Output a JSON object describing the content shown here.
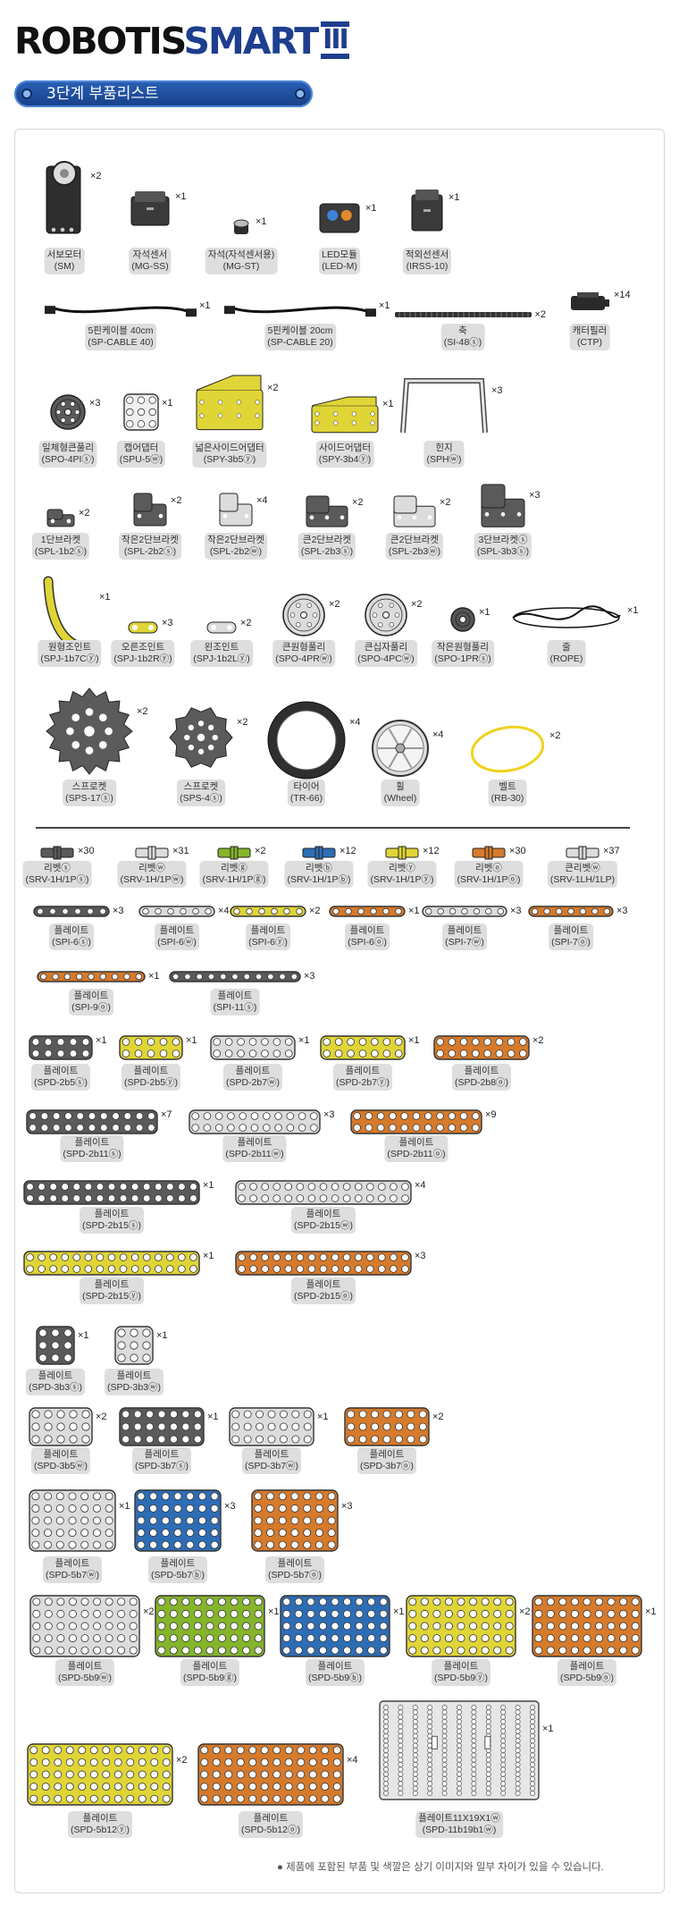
{
  "brand": {
    "part1": "ROBOTIS",
    "part2": "SMART",
    "part3": "III"
  },
  "banner": {
    "title": "3단계 부품리스트"
  },
  "note": "● 제품에 포함된 부품 및 색깔은 상기 이미지와 일부 차이가 있을 수 있습니다.",
  "colors": {
    "accent": "#1e3e8e",
    "banner": "#2a61b8",
    "dark_gray": "#595959",
    "light_gray": "#d2d2d2",
    "yellow": "#e2d636",
    "orange": "#d97b2a",
    "blue": "#2e6cb5",
    "green": "#86b82c"
  },
  "parts": [
    {
      "id": "sm",
      "name": "서보모터",
      "code": "(SM)",
      "qty": "×2",
      "icon": "servo-motor-icon"
    },
    {
      "id": "mgss",
      "name": "자석센서",
      "code": "(MG-SS)",
      "qty": "×1",
      "icon": "magnet-sensor-icon"
    },
    {
      "id": "mgst",
      "name": "자석(자석센서용)",
      "code": "(MG-ST)",
      "qty": "×1",
      "icon": "magnet-icon"
    },
    {
      "id": "ledm",
      "name": "LED모듈",
      "code": "(LED-M)",
      "qty": "×1",
      "icon": "led-module-icon"
    },
    {
      "id": "irss",
      "name": "적외선센서",
      "code": "(IRSS-10)",
      "qty": "×1",
      "icon": "infrared-sensor-icon"
    },
    {
      "id": "cable40",
      "name": "5핀케이블 40cm",
      "code": "(SP-CABLE 40)",
      "qty": "×1",
      "icon": "cable-icon"
    },
    {
      "id": "cable20",
      "name": "5핀케이블 20cm",
      "code": "(SP-CABLE 20)",
      "qty": "×1",
      "icon": "cable-icon"
    },
    {
      "id": "shaft",
      "name": "축",
      "code": "(SI-48ⓢ)",
      "qty": "×2",
      "icon": "shaft-icon"
    },
    {
      "id": "ctp",
      "name": "캐터필러",
      "code": "(CTP)",
      "qty": "×14",
      "icon": "caterpillar-icon"
    },
    {
      "id": "spo4pl",
      "name": "일체형큰풀리",
      "code": "(SPO-4PIⓢ)",
      "qty": "×3",
      "icon": "pulley-icon"
    },
    {
      "id": "spu5",
      "name": "캡어댑터",
      "code": "(SPU-5ⓦ)",
      "qty": "×1",
      "icon": "cap-adapter-icon"
    },
    {
      "id": "spy3b5",
      "name": "넓은사이드어댑터",
      "code": "(SPY-3b5ⓨ)",
      "qty": "×2",
      "icon": "wide-side-adapter-icon"
    },
    {
      "id": "spy3b4",
      "name": "사이드어댑터",
      "code": "(SPY-3b4ⓨ)",
      "qty": "×1",
      "icon": "side-adapter-icon"
    },
    {
      "id": "sph",
      "name": "힌지",
      "code": "(SPHⓦ)",
      "qty": "×3",
      "icon": "hinge-icon"
    },
    {
      "id": "spl1b2",
      "name": "1단브라켓",
      "code": "(SPL-1b2ⓢ)",
      "qty": "×2",
      "icon": "bracket-icon"
    },
    {
      "id": "spl2b2s",
      "name": "작은2단브라켓",
      "code": "(SPL-2b2ⓢ)",
      "qty": "×2",
      "icon": "bracket-icon"
    },
    {
      "id": "spl2b2w",
      "name": "작은2단브라켓",
      "code": "(SPL-2b2ⓦ)",
      "qty": "×4",
      "icon": "bracket-icon"
    },
    {
      "id": "spl2b3s",
      "name": "큰2단브라켓",
      "code": "(SPL-2b3ⓢ)",
      "qty": "×2",
      "icon": "bracket-icon"
    },
    {
      "id": "spl2b3w",
      "name": "큰2단브라켓",
      "code": "(SPL-2b3ⓦ)",
      "qty": "×2",
      "icon": "bracket-icon"
    },
    {
      "id": "spl3b3",
      "name": "3단브라켓ⓢ",
      "code": "(SPL-3b3ⓢ)",
      "qty": "×3",
      "icon": "bracket-icon"
    },
    {
      "id": "spj1b7",
      "name": "원형조인트",
      "code": "(SPJ-1b7Cⓨ)",
      "qty": "×1",
      "icon": "joint-icon"
    },
    {
      "id": "spj1b2r",
      "name": "오른조인트",
      "code": "(SPJ-1b2Rⓨ)",
      "qty": "×3",
      "icon": "joint-icon"
    },
    {
      "id": "spj1b2l",
      "name": "왼조인트",
      "code": "(SPJ-1b2Lⓨ)",
      "qty": "×2",
      "icon": "joint-icon"
    },
    {
      "id": "spo4pr",
      "name": "큰원형풀리",
      "code": "(SPO-4PRⓦ)",
      "qty": "×2",
      "icon": "pulley-icon"
    },
    {
      "id": "spo4pc",
      "name": "큰십자풀리",
      "code": "(SPO-4PCⓦ)",
      "qty": "×2",
      "icon": "pulley-icon"
    },
    {
      "id": "spo1pr",
      "name": "작은원형풀리",
      "code": "(SPO-1PRⓢ)",
      "qty": "×1",
      "icon": "pulley-icon"
    },
    {
      "id": "rope",
      "name": "줄",
      "code": "(ROPE)",
      "qty": "×1",
      "icon": "rope-icon"
    },
    {
      "id": "sps17",
      "name": "스프로켓",
      "code": "(SPS-17ⓢ)",
      "qty": "×2",
      "icon": "sprocket-icon"
    },
    {
      "id": "sps4",
      "name": "스프로켓",
      "code": "(SPS-4ⓢ)",
      "qty": "×2",
      "icon": "sprocket-icon"
    },
    {
      "id": "tr66",
      "name": "타이어",
      "code": "(TR-66)",
      "qty": "×4",
      "icon": "tire-icon"
    },
    {
      "id": "wheel",
      "name": "휠",
      "code": "(Wheel)",
      "qty": "×4",
      "icon": "wheel-icon"
    },
    {
      "id": "rb30",
      "name": "벨트",
      "code": "(RB-30)",
      "qty": "×2",
      "icon": "belt-icon"
    },
    {
      "id": "r1",
      "name": "리벳ⓢ",
      "code": "(SRV-1H/1Pⓢ)",
      "qty": "×30",
      "icon": "rivet-icon"
    },
    {
      "id": "r2",
      "name": "리벳ⓦ",
      "code": "(SRV-1H/1Pⓦ)",
      "qty": "×31",
      "icon": "rivet-icon"
    },
    {
      "id": "r3",
      "name": "리벳ⓖ",
      "code": "(SRV-1H/1Pⓖ)",
      "qty": "×2",
      "icon": "rivet-icon"
    },
    {
      "id": "r4",
      "name": "리벳ⓑ",
      "code": "(SRV-1H/1Pⓑ)",
      "qty": "×12",
      "icon": "rivet-icon"
    },
    {
      "id": "r5",
      "name": "리벳ⓨ",
      "code": "(SRV-1H/1Pⓨ)",
      "qty": "×12",
      "icon": "rivet-icon"
    },
    {
      "id": "r6",
      "name": "리벳ⓞ",
      "code": "(SRV-1H/1Pⓞ)",
      "qty": "×30",
      "icon": "rivet-icon"
    },
    {
      "id": "r7",
      "name": "큰리벳ⓦ",
      "code": "(SRV-1LH/1LP)",
      "qty": "×37",
      "icon": "rivet-icon"
    },
    {
      "id": "pi6s",
      "name": "플레이트",
      "code": "(SPI-6ⓢ)",
      "qty": "×3",
      "icon": "plate-icon"
    },
    {
      "id": "pi6w",
      "name": "플레이트",
      "code": "(SPI-6ⓦ)",
      "qty": "×4",
      "icon": "plate-icon"
    },
    {
      "id": "pi6y",
      "name": "플레이트",
      "code": "(SPI-6ⓨ)",
      "qty": "×2",
      "icon": "plate-icon"
    },
    {
      "id": "pi6o",
      "name": "플레이트",
      "code": "(SPI-6ⓞ)",
      "qty": "×1",
      "icon": "plate-icon"
    },
    {
      "id": "pi7w",
      "name": "플레이트",
      "code": "(SPI-7ⓦ)",
      "qty": "×3",
      "icon": "plate-icon"
    },
    {
      "id": "pi7o",
      "name": "플레이트",
      "code": "(SPI-7ⓞ)",
      "qty": "×3",
      "icon": "plate-icon"
    },
    {
      "id": "pi9o",
      "name": "플레이트",
      "code": "(SPI-9ⓞ)",
      "qty": "×1",
      "icon": "plate-icon"
    },
    {
      "id": "pi11s",
      "name": "플레이트",
      "code": "(SPI-11ⓢ)",
      "qty": "×3",
      "icon": "plate-icon"
    },
    {
      "id": "d2b5s",
      "name": "플레이트",
      "code": "(SPD-2b5ⓢ)",
      "qty": "×1",
      "icon": "plate-icon"
    },
    {
      "id": "d2b5y",
      "name": "플레이트",
      "code": "(SPD-2b5ⓨ)",
      "qty": "×1",
      "icon": "plate-icon"
    },
    {
      "id": "d2b7w",
      "name": "플레이트",
      "code": "(SPD-2b7ⓦ)",
      "qty": "×1",
      "icon": "plate-icon"
    },
    {
      "id": "d2b7y",
      "name": "플레이트",
      "code": "(SPD-2b7ⓨ)",
      "qty": "×1",
      "icon": "plate-icon"
    },
    {
      "id": "d2b8o",
      "name": "플레이트",
      "code": "(SPD-2b8ⓞ)",
      "qty": "×2",
      "icon": "plate-icon"
    },
    {
      "id": "d2b11s",
      "name": "플레이트",
      "code": "(SPD-2b11ⓢ)",
      "qty": "×7",
      "icon": "plate-icon"
    },
    {
      "id": "d2b11w",
      "name": "플레이트",
      "code": "(SPD-2b11ⓦ)",
      "qty": "×3",
      "icon": "plate-icon"
    },
    {
      "id": "d2b11o",
      "name": "플레이트",
      "code": "(SPD-2b11ⓞ)",
      "qty": "×9",
      "icon": "plate-icon"
    },
    {
      "id": "d2b15s",
      "name": "플레이트",
      "code": "(SPD-2b15ⓢ)",
      "qty": "×1",
      "icon": "plate-icon"
    },
    {
      "id": "d2b15w",
      "name": "플레이트",
      "code": "(SPD-2b15ⓦ)",
      "qty": "×4",
      "icon": "plate-icon"
    },
    {
      "id": "d2b15y",
      "name": "플레이트",
      "code": "(SPD-2b15ⓨ)",
      "qty": "×1",
      "icon": "plate-icon"
    },
    {
      "id": "d2b15o",
      "name": "플레이트",
      "code": "(SPD-2b15ⓞ)",
      "qty": "×3",
      "icon": "plate-icon"
    },
    {
      "id": "d3b3s",
      "name": "플레이트",
      "code": "(SPD-3b3ⓢ)",
      "qty": "×1",
      "icon": "plate-icon"
    },
    {
      "id": "d3b3w",
      "name": "플레이트",
      "code": "(SPD-3b3ⓦ)",
      "qty": "×1",
      "icon": "plate-icon"
    },
    {
      "id": "d3b5w",
      "name": "플레이트",
      "code": "(SPD-3b5ⓦ)",
      "qty": "×2",
      "icon": "plate-icon"
    },
    {
      "id": "d3b7s",
      "name": "플레이트",
      "code": "(SPD-3b7ⓢ)",
      "qty": "×1",
      "icon": "plate-icon"
    },
    {
      "id": "d3b7w",
      "name": "플레이트",
      "code": "(SPD-3b7ⓦ)",
      "qty": "×1",
      "icon": "plate-icon"
    },
    {
      "id": "d3b7o",
      "name": "플레이트",
      "code": "(SPD-3b7ⓞ)",
      "qty": "×2",
      "icon": "plate-icon"
    },
    {
      "id": "d5b7w",
      "name": "플레이트",
      "code": "(SPD-5b7ⓦ)",
      "qty": "×1",
      "icon": "plate-icon"
    },
    {
      "id": "d5b7b",
      "name": "플레이트",
      "code": "(SPD-5b7ⓑ)",
      "qty": "×3",
      "icon": "plate-icon"
    },
    {
      "id": "d5b7o",
      "name": "플레이트",
      "code": "(SPD-5b7ⓞ)",
      "qty": "×3",
      "icon": "plate-icon"
    },
    {
      "id": "d5b9w",
      "name": "플레이트",
      "code": "(SPD-5b9ⓦ)",
      "qty": "×2",
      "icon": "plate-icon"
    },
    {
      "id": "d5b9g",
      "name": "플레이트",
      "code": "(SPD-5b9ⓖ)",
      "qty": "×1",
      "icon": "plate-icon"
    },
    {
      "id": "d5b9b",
      "name": "플레이트",
      "code": "(SPD-5b9ⓑ)",
      "qty": "×1",
      "icon": "plate-icon"
    },
    {
      "id": "d5b9y",
      "name": "플레이트",
      "code": "(SPD-5b9ⓨ)",
      "qty": "×2",
      "icon": "plate-icon"
    },
    {
      "id": "d5b9o",
      "name": "플레이트",
      "code": "(SPD-5b9ⓞ)",
      "qty": "×1",
      "icon": "plate-icon"
    },
    {
      "id": "d5b12y",
      "name": "플레이트",
      "code": "(SPD-5b12ⓨ)",
      "qty": "×2",
      "icon": "plate-icon"
    },
    {
      "id": "d5b12o",
      "name": "플레이트",
      "code": "(SPD-5b12ⓞ)",
      "qty": "×4",
      "icon": "plate-icon"
    },
    {
      "id": "d11b19",
      "name": "플레이트11X19X1ⓦ",
      "code": "(SPD-11b19b1ⓦ)",
      "qty": "×1",
      "icon": "large-plate-icon"
    }
  ]
}
